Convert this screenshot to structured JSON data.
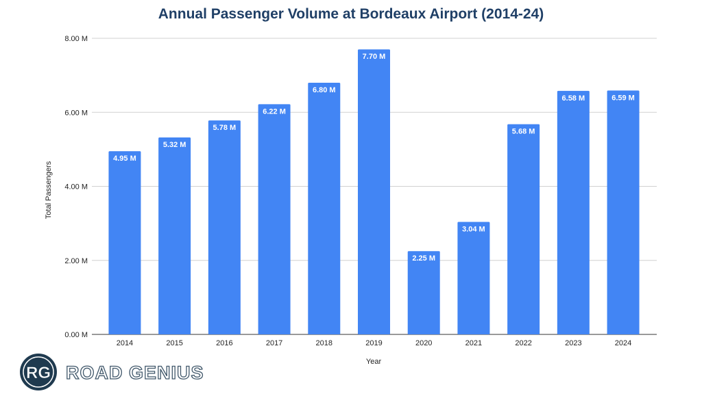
{
  "chart_data": {
    "type": "bar",
    "title": "Annual Passenger Volume at Bordeaux Airport (2014-24)",
    "xlabel": "Year",
    "ylabel": "Total Passengers",
    "ylim": [
      0,
      8
    ],
    "unit": "M",
    "yticks": [
      "0.00 M",
      "2.00 M",
      "4.00 M",
      "6.00 M",
      "8.00 M"
    ],
    "ytick_values": [
      0,
      2,
      4,
      6,
      8
    ],
    "grid": true,
    "categories": [
      "2014",
      "2015",
      "2016",
      "2017",
      "2018",
      "2019",
      "2020",
      "2021",
      "2022",
      "2023",
      "2024"
    ],
    "values": [
      4.95,
      5.32,
      5.78,
      6.22,
      6.8,
      7.7,
      2.25,
      3.04,
      5.68,
      6.58,
      6.59
    ],
    "data_labels": [
      "4.95 M",
      "5.32 M",
      "5.78 M",
      "6.22 M",
      "6.80 M",
      "7.70 M",
      "2.25 M",
      "3.04 M",
      "5.68 M",
      "6.58 M",
      "6.59 M"
    ],
    "bar_color": "#4285f4"
  },
  "logo": {
    "monogram": "RG",
    "text": "ROAD GENIUS",
    "color": "#1f3a4f"
  }
}
